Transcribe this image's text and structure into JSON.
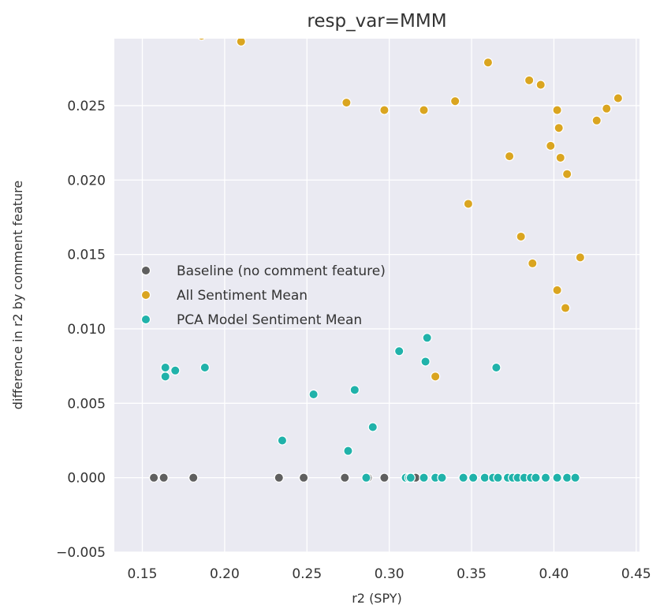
{
  "chart_data": {
    "type": "scatter",
    "title": "resp_var=MMM",
    "xlabel": "r2 (SPY)",
    "ylabel": "difference in r2 by comment feature",
    "xlim": [
      0.133,
      0.452
    ],
    "ylim": [
      -0.005,
      0.0295
    ],
    "xticks": [
      0.15,
      0.2,
      0.25,
      0.3,
      0.35,
      0.4,
      0.45
    ],
    "xtick_labels": [
      "0.15",
      "0.20",
      "0.25",
      "0.30",
      "0.35",
      "0.40",
      "0.45"
    ],
    "yticks": [
      -0.005,
      0.0,
      0.005,
      0.01,
      0.015,
      0.02,
      0.025
    ],
    "ytick_labels": [
      "−0.005",
      "0.000",
      "0.005",
      "0.010",
      "0.015",
      "0.020",
      "0.025"
    ],
    "grid": true,
    "background": "#eaeaf2",
    "legend_placement": "center-left",
    "series": [
      {
        "name": "Baseline (no comment feature)",
        "color": "#5f5f5f",
        "points": [
          [
            0.157,
            0.0
          ],
          [
            0.163,
            0.0
          ],
          [
            0.181,
            0.0
          ],
          [
            0.233,
            0.0
          ],
          [
            0.248,
            0.0
          ],
          [
            0.273,
            0.0
          ],
          [
            0.287,
            0.0
          ],
          [
            0.297,
            0.0
          ],
          [
            0.315,
            0.0
          ],
          [
            0.316,
            0.0
          ]
        ]
      },
      {
        "name": "All Sentiment Mean",
        "color": "#daa520",
        "points": [
          [
            0.186,
            0.0297
          ],
          [
            0.21,
            0.0293
          ],
          [
            0.274,
            0.0252
          ],
          [
            0.297,
            0.0247
          ],
          [
            0.321,
            0.0247
          ],
          [
            0.34,
            0.0253
          ],
          [
            0.36,
            0.0279
          ],
          [
            0.385,
            0.0267
          ],
          [
            0.392,
            0.0264
          ],
          [
            0.402,
            0.0247
          ],
          [
            0.403,
            0.0235
          ],
          [
            0.439,
            0.0255
          ],
          [
            0.432,
            0.0248
          ],
          [
            0.426,
            0.024
          ],
          [
            0.373,
            0.0216
          ],
          [
            0.398,
            0.0223
          ],
          [
            0.404,
            0.0215
          ],
          [
            0.408,
            0.0204
          ],
          [
            0.348,
            0.0184
          ],
          [
            0.38,
            0.0162
          ],
          [
            0.387,
            0.0144
          ],
          [
            0.416,
            0.0148
          ],
          [
            0.402,
            0.0126
          ],
          [
            0.407,
            0.0114
          ],
          [
            0.328,
            0.0068
          ]
        ]
      },
      {
        "name": "PCA Model Sentiment Mean",
        "color": "#20b2aa",
        "points": [
          [
            0.164,
            0.0074
          ],
          [
            0.164,
            0.0068
          ],
          [
            0.17,
            0.0072
          ],
          [
            0.188,
            0.0074
          ],
          [
            0.235,
            0.0025
          ],
          [
            0.254,
            0.0056
          ],
          [
            0.275,
            0.0018
          ],
          [
            0.279,
            0.0059
          ],
          [
            0.29,
            0.0034
          ],
          [
            0.306,
            0.0085
          ],
          [
            0.322,
            0.0078
          ],
          [
            0.323,
            0.0094
          ],
          [
            0.365,
            0.0074
          ],
          [
            0.286,
            0.0
          ],
          [
            0.31,
            0.0
          ],
          [
            0.312,
            0.0
          ],
          [
            0.313,
            0.0
          ],
          [
            0.321,
            0.0
          ],
          [
            0.328,
            0.0
          ],
          [
            0.332,
            0.0
          ],
          [
            0.345,
            0.0
          ],
          [
            0.351,
            0.0
          ],
          [
            0.358,
            0.0
          ],
          [
            0.363,
            0.0
          ],
          [
            0.366,
            0.0
          ],
          [
            0.372,
            0.0
          ],
          [
            0.375,
            0.0
          ],
          [
            0.378,
            0.0
          ],
          [
            0.382,
            0.0
          ],
          [
            0.386,
            0.0
          ],
          [
            0.389,
            0.0
          ],
          [
            0.395,
            0.0
          ],
          [
            0.402,
            0.0
          ],
          [
            0.408,
            0.0
          ],
          [
            0.413,
            0.0
          ]
        ]
      }
    ]
  }
}
